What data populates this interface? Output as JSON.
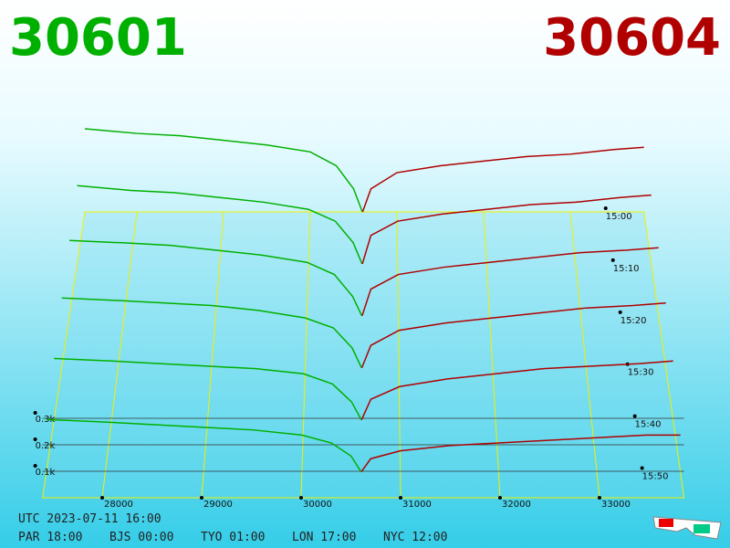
{
  "header": {
    "bid": "30601",
    "ask": "30604"
  },
  "chart_data": {
    "type": "depth3d",
    "bid_color": "#00b000",
    "ask_color": "#b00000",
    "xlim": [
      27400,
      33850
    ],
    "xticks": [
      28000,
      29000,
      30000,
      31000,
      32000,
      33000
    ],
    "zticks": [
      {
        "value": 0.1,
        "label": "0.1k"
      },
      {
        "value": 0.2,
        "label": "0.2k"
      },
      {
        "value": 0.3,
        "label": "0.3k"
      }
    ],
    "bid_prices": [
      27400,
      28000,
      28500,
      29000,
      29500,
      30000,
      30300,
      30500,
      30601
    ],
    "ask_prices": [
      30604,
      30700,
      31000,
      31500,
      32000,
      32500,
      33000,
      33500,
      33850
    ],
    "slices": [
      {
        "time": "15:00",
        "bids": [
          0.36,
          0.34,
          0.33,
          0.31,
          0.29,
          0.26,
          0.2,
          0.1,
          0
        ],
        "asks": [
          0,
          0.1,
          0.17,
          0.2,
          0.22,
          0.24,
          0.25,
          0.27,
          0.28
        ]
      },
      {
        "time": "15:10",
        "bids": [
          0.33,
          0.31,
          0.3,
          0.28,
          0.26,
          0.23,
          0.18,
          0.09,
          0
        ],
        "asks": [
          0,
          0.12,
          0.18,
          0.21,
          0.23,
          0.25,
          0.26,
          0.28,
          0.29
        ]
      },
      {
        "time": "15:20",
        "bids": [
          0.31,
          0.3,
          0.29,
          0.27,
          0.25,
          0.22,
          0.17,
          0.08,
          0
        ],
        "asks": [
          0,
          0.11,
          0.17,
          0.2,
          0.22,
          0.24,
          0.26,
          0.27,
          0.28
        ]
      },
      {
        "time": "15:30",
        "bids": [
          0.28,
          0.27,
          0.26,
          0.25,
          0.23,
          0.2,
          0.16,
          0.08,
          0
        ],
        "asks": [
          0,
          0.09,
          0.15,
          0.18,
          0.2,
          0.22,
          0.24,
          0.25,
          0.26
        ]
      },
      {
        "time": "15:40",
        "bids": [
          0.24,
          0.23,
          0.22,
          0.21,
          0.2,
          0.18,
          0.14,
          0.07,
          0
        ],
        "asks": [
          0,
          0.08,
          0.13,
          0.16,
          0.18,
          0.2,
          0.21,
          0.22,
          0.23
        ]
      },
      {
        "time": "15:50",
        "bids": [
          0.2,
          0.19,
          0.18,
          0.17,
          0.16,
          0.14,
          0.11,
          0.06,
          0
        ],
        "asks": [
          0,
          0.05,
          0.08,
          0.1,
          0.11,
          0.12,
          0.13,
          0.14,
          0.14
        ]
      }
    ]
  },
  "footer": {
    "utc": "UTC 2023-07-11 16:00",
    "zones": [
      "PAR 18:00",
      "BJS 00:00",
      "TYO 01:00",
      "LON 17:00",
      "NYC 12:00"
    ]
  }
}
